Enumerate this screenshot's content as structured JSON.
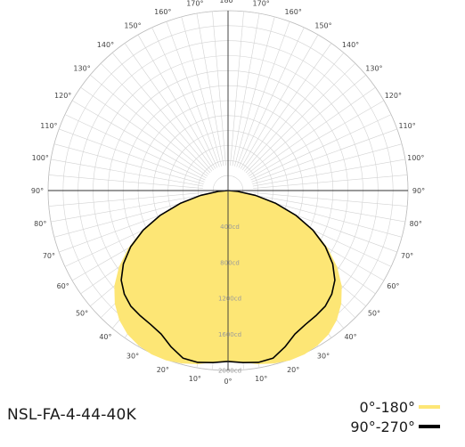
{
  "chart_data": {
    "type": "polar",
    "product": "NSL-FA-4-44-40K",
    "angle_labels": [
      "0°",
      "10°",
      "20°",
      "30°",
      "40°",
      "50°",
      "60°",
      "70°",
      "80°",
      "90°",
      "100°",
      "110°",
      "120°",
      "130°",
      "140°",
      "150°",
      "160°",
      "170°",
      "180°"
    ],
    "angle_values": [
      0,
      10,
      20,
      30,
      40,
      50,
      60,
      70,
      80,
      90,
      100,
      110,
      120,
      130,
      140,
      150,
      160,
      170,
      180
    ],
    "ring_labels": [
      "400cd",
      "800cd",
      "1200cd",
      "1600cd",
      "2000cd"
    ],
    "ring_values": [
      400,
      800,
      1200,
      1600,
      2000
    ],
    "r_max": 2000,
    "series": [
      {
        "name": "0°-180°",
        "color": "#fde675",
        "style": "fill",
        "angles": [
          0,
          5,
          10,
          15,
          20,
          25,
          30,
          35,
          40,
          45,
          50,
          55,
          60,
          65,
          70,
          75,
          80,
          85,
          90
        ],
        "values": [
          1900,
          1920,
          1960,
          1990,
          2010,
          2010,
          1990,
          1950,
          1880,
          1780,
          1650,
          1480,
          1280,
          1060,
          810,
          560,
          320,
          120,
          0
        ]
      },
      {
        "name": "90°-270°",
        "color": "#000000",
        "style": "line",
        "angles": [
          0,
          5,
          10,
          15,
          20,
          25,
          30,
          35,
          40,
          45,
          50,
          55,
          60,
          65,
          70,
          75,
          80,
          85,
          90
        ],
        "values": [
          1900,
          1920,
          1940,
          1930,
          1850,
          1760,
          1720,
          1700,
          1680,
          1630,
          1550,
          1420,
          1250,
          1040,
          800,
          550,
          310,
          110,
          0
        ]
      }
    ]
  },
  "legend": {
    "series0": "0°-180°",
    "series1": "90°-270°"
  }
}
